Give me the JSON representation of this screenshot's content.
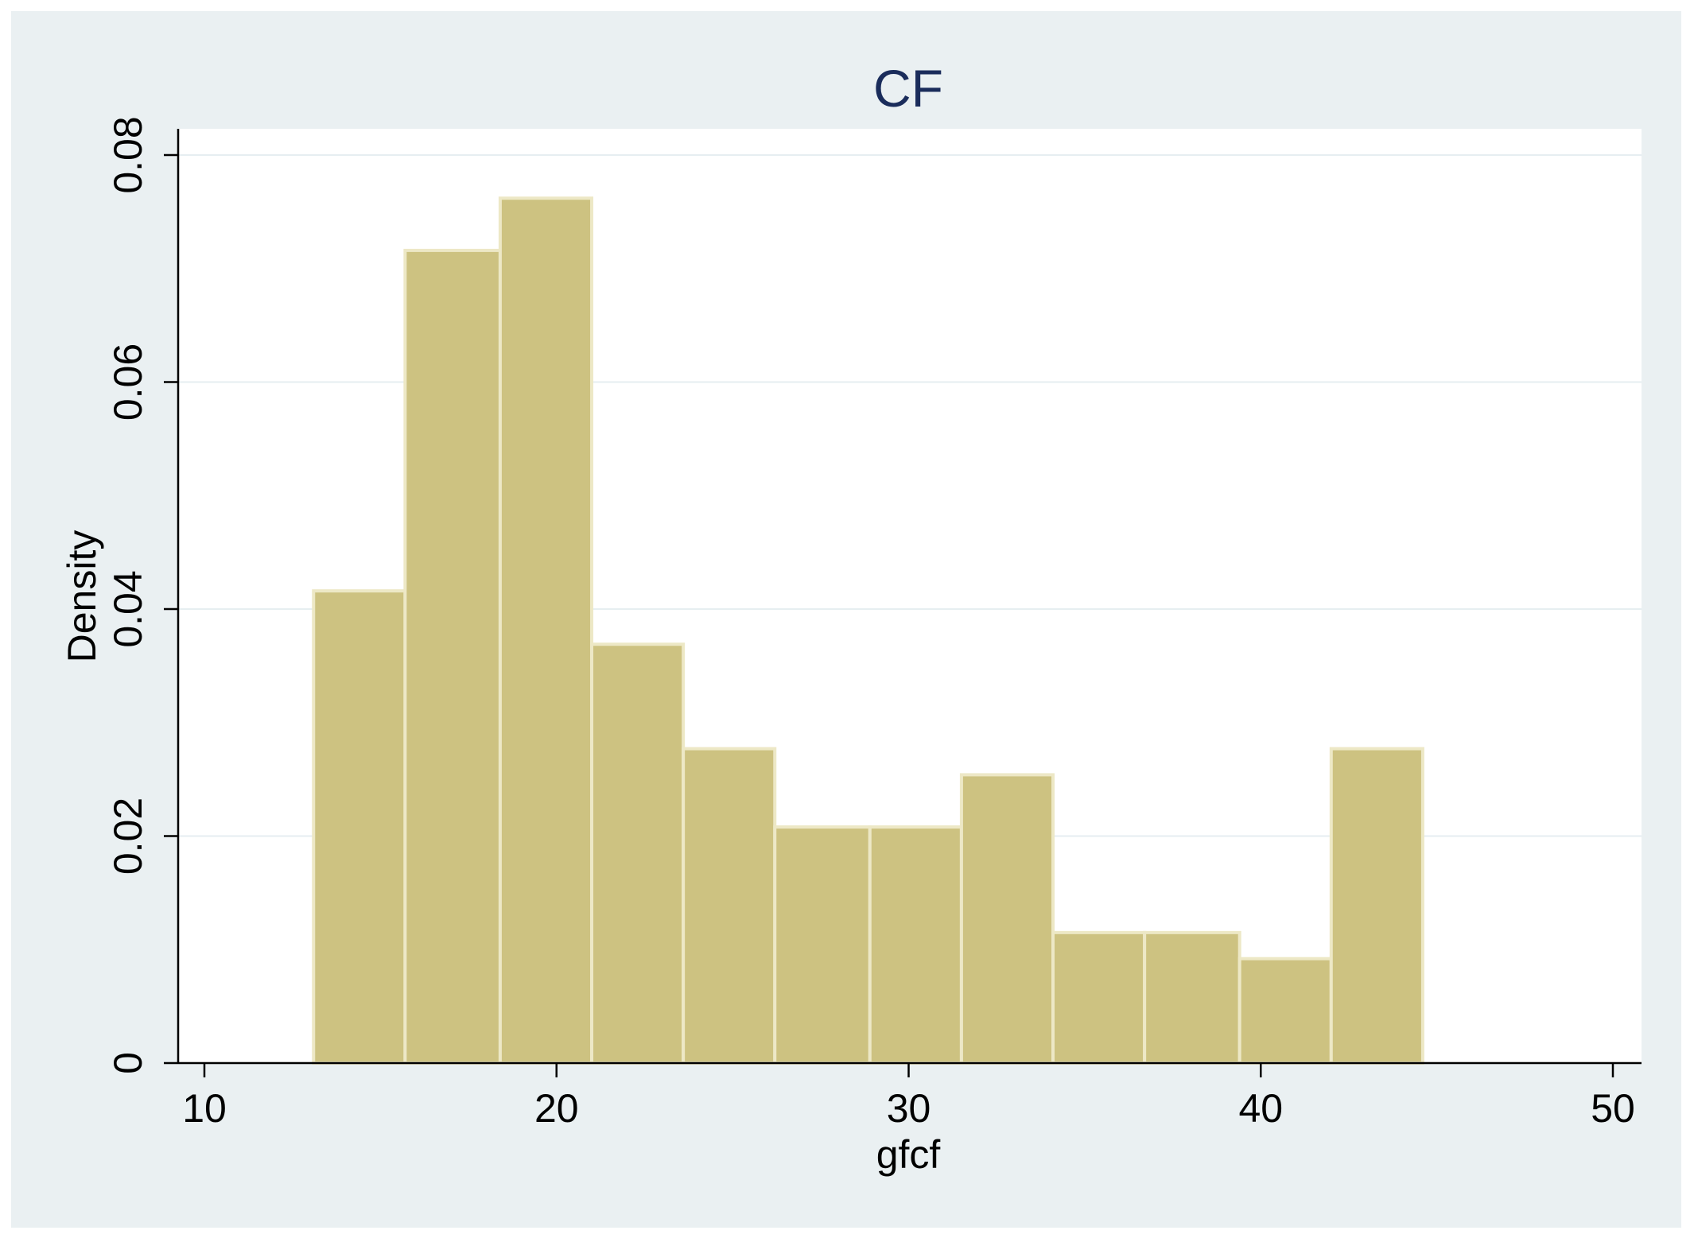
{
  "chart_data": {
    "type": "bar",
    "title": "CF",
    "xlabel": "gfcf",
    "ylabel": "Density",
    "xlim": [
      10,
      50
    ],
    "ylim": [
      0,
      0.08
    ],
    "x_ticks": [
      "10",
      "20",
      "30",
      "40",
      "50"
    ],
    "y_ticks": [
      "0",
      "0.02",
      "0.04",
      "0.06",
      "0.08"
    ],
    "bin_edges": [
      13.1,
      15.7,
      18.4,
      21.0,
      23.6,
      26.2,
      28.9,
      31.5,
      34.1,
      36.7,
      39.4,
      42.0,
      44.6
    ],
    "values": [
      0.0416,
      0.0716,
      0.0762,
      0.0369,
      0.0277,
      0.0208,
      0.0208,
      0.0254,
      0.0115,
      0.0115,
      0.0092,
      0.0277
    ],
    "grid": true,
    "colors": {
      "bar_fill": "#cdc281",
      "bar_stroke": "#ede8c6",
      "outer_background": "#eaf0f2",
      "plot_background": "#ffffff",
      "grid": "#e6eef1",
      "title": "#1a2c5b"
    }
  }
}
